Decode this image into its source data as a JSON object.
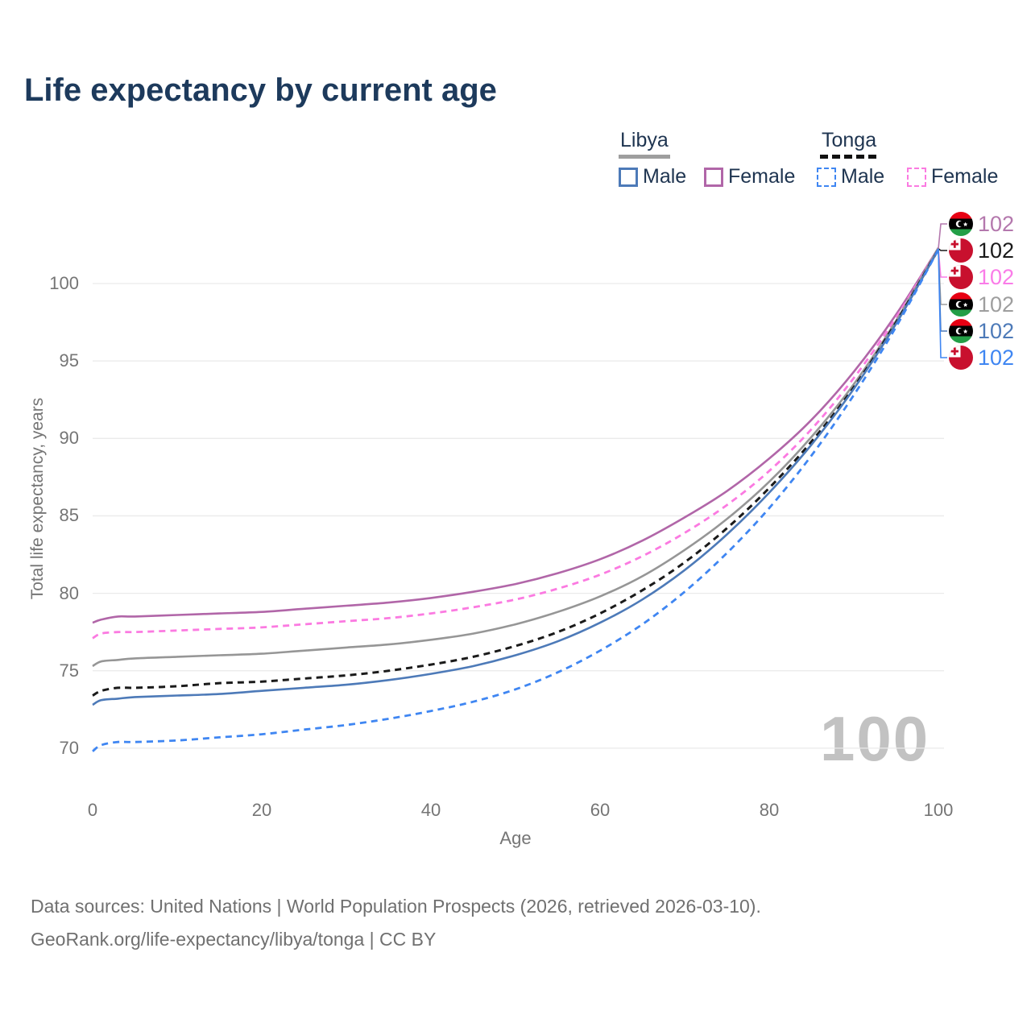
{
  "title": "Life expectancy by current age",
  "legend": {
    "groups": [
      {
        "label": "Libya",
        "line_style": "solid",
        "line_color": "#9e9e9e"
      },
      {
        "label": "Tonga",
        "line_style": "dashed",
        "line_color": "#111111"
      }
    ],
    "items": [
      {
        "label": "Male",
        "group": "Libya",
        "color": "#4d7ab8",
        "style": "solid"
      },
      {
        "label": "Female",
        "group": "Libya",
        "color": "#b166a8",
        "style": "solid"
      },
      {
        "label": "Male",
        "group": "Tonga",
        "color": "#3f86f2",
        "style": "dashed"
      },
      {
        "label": "Female",
        "group": "Tonga",
        "color": "#fb7ae1",
        "style": "dashed"
      }
    ]
  },
  "watermark": "100",
  "chart_data": {
    "type": "line",
    "title": "Life expectancy by current age",
    "xlabel": "Age",
    "ylabel": "Total life expectancy, years",
    "x_ticks": [
      0,
      20,
      40,
      60,
      80,
      100
    ],
    "y_ticks": [
      70,
      75,
      80,
      85,
      90,
      95,
      100
    ],
    "xlim": [
      0,
      100
    ],
    "ylim": [
      68,
      103.5
    ],
    "grid": "horizontal",
    "legend_position": "top-right",
    "x": [
      0,
      1,
      3,
      5,
      10,
      15,
      20,
      25,
      30,
      35,
      40,
      45,
      50,
      55,
      60,
      65,
      70,
      75,
      80,
      85,
      90,
      95,
      100
    ],
    "series": [
      {
        "id": "libya_female",
        "name": "Libya Female",
        "color": "#b166a8",
        "style": "solid",
        "width": 2.6,
        "values": [
          78.1,
          78.3,
          78.5,
          78.5,
          78.6,
          78.7,
          78.8,
          79.0,
          79.2,
          79.4,
          79.7,
          80.1,
          80.6,
          81.3,
          82.2,
          83.4,
          84.9,
          86.6,
          88.7,
          91.2,
          94.3,
          98.0,
          102.3
        ]
      },
      {
        "id": "tonga_female",
        "name": "Tonga Female",
        "color": "#fb7ae1",
        "style": "dashed",
        "width": 2.8,
        "values": [
          77.1,
          77.4,
          77.5,
          77.5,
          77.6,
          77.7,
          77.8,
          78.0,
          78.2,
          78.4,
          78.7,
          79.1,
          79.6,
          80.3,
          81.2,
          82.4,
          83.9,
          85.7,
          87.9,
          90.6,
          93.9,
          97.8,
          102.3
        ]
      },
      {
        "id": "libya_both",
        "name": "Libya (both sexes)",
        "color": "#969696",
        "style": "solid",
        "width": 2.6,
        "values": [
          75.3,
          75.6,
          75.7,
          75.8,
          75.9,
          76.0,
          76.1,
          76.3,
          76.5,
          76.7,
          77.0,
          77.4,
          78.0,
          78.8,
          79.8,
          81.1,
          82.8,
          84.8,
          87.2,
          90.1,
          93.5,
          97.6,
          102.3
        ]
      },
      {
        "id": "tonga_both",
        "name": "Tonga (both sexes)",
        "color": "#1a1a1a",
        "style": "dashed",
        "width": 3,
        "values": [
          73.4,
          73.7,
          73.9,
          73.9,
          74.0,
          74.2,
          74.3,
          74.5,
          74.7,
          75.0,
          75.4,
          75.9,
          76.6,
          77.5,
          78.7,
          80.2,
          82.0,
          84.2,
          86.8,
          89.8,
          93.3,
          97.5,
          102.2
        ]
      },
      {
        "id": "libya_male",
        "name": "Libya Male",
        "color": "#4d7ab8",
        "style": "solid",
        "width": 2.6,
        "values": [
          72.8,
          73.1,
          73.2,
          73.3,
          73.4,
          73.5,
          73.7,
          73.9,
          74.1,
          74.4,
          74.8,
          75.3,
          76.0,
          76.9,
          78.1,
          79.6,
          81.5,
          83.8,
          86.5,
          89.6,
          93.2,
          97.4,
          102.2
        ]
      },
      {
        "id": "tonga_male",
        "name": "Tonga Male",
        "color": "#3f86f2",
        "style": "dashed",
        "width": 2.8,
        "values": [
          69.8,
          70.2,
          70.4,
          70.4,
          70.5,
          70.7,
          70.9,
          71.2,
          71.5,
          71.9,
          72.4,
          73.0,
          73.8,
          74.9,
          76.3,
          78.0,
          80.1,
          82.6,
          85.5,
          88.9,
          92.8,
          97.2,
          102.2
        ]
      }
    ],
    "end_labels": [
      {
        "icon": "libya-flag-icon",
        "flag": "libya",
        "value": "102",
        "color": "#b478ad",
        "series": "libya_female"
      },
      {
        "icon": "tonga-flag-icon",
        "flag": "tonga",
        "value": "102",
        "color": "#1a1a1a",
        "series": "tonga_both"
      },
      {
        "icon": "tonga-flag-icon",
        "flag": "tonga",
        "value": "102",
        "color": "#fa7ce8",
        "series": "tonga_female"
      },
      {
        "icon": "libya-flag-icon",
        "flag": "libya",
        "value": "102",
        "color": "#9e9e9e",
        "series": "libya_both"
      },
      {
        "icon": "libya-flag-icon",
        "flag": "libya",
        "value": "102",
        "color": "#4d7ab8",
        "series": "libya_male"
      },
      {
        "icon": "tonga-flag-icon",
        "flag": "tonga",
        "value": "102",
        "color": "#3f86f2",
        "series": "tonga_male"
      }
    ]
  },
  "footer": {
    "line1": "Data sources: United Nations | World Population Prospects (2026, retrieved 2026-03-10).",
    "line2": "GeoRank.org/life-expectancy/libya/tonga | CC BY"
  }
}
